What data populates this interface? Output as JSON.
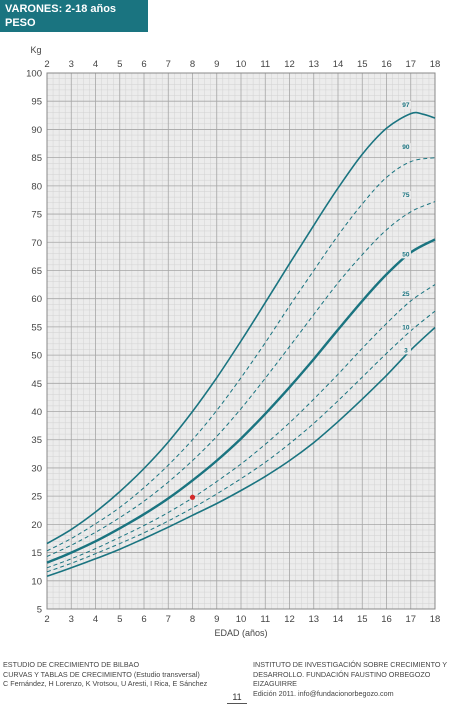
{
  "header": {
    "title_line1": "VARONES: 2-18 años",
    "title_line2": "PESO"
  },
  "chart_data": {
    "type": "line",
    "title": "VARONES: 2-18 años",
    "subtitle": "PESO",
    "xlabel": "EDAD (años)",
    "ylabel": "Kg",
    "xlim": [
      2,
      18
    ],
    "ylim": [
      5,
      100
    ],
    "xticks": [
      2,
      3,
      4,
      5,
      6,
      7,
      8,
      9,
      10,
      11,
      12,
      13,
      14,
      15,
      16,
      17,
      18
    ],
    "yticks": [
      5,
      10,
      15,
      20,
      25,
      30,
      35,
      40,
      45,
      50,
      55,
      60,
      65,
      70,
      75,
      80,
      85,
      90,
      95,
      100
    ],
    "grid": true,
    "series": [
      {
        "name": "97",
        "style": "solid",
        "x": [
          2,
          3,
          4,
          5,
          6,
          7,
          8,
          9,
          10,
          11,
          12,
          13,
          14,
          15,
          16,
          17,
          17.5,
          18
        ],
        "values": [
          16.6,
          19.1,
          22.2,
          25.8,
          29.9,
          34.6,
          40.0,
          46.0,
          52.5,
          59.3,
          66.2,
          73.0,
          79.6,
          85.6,
          90.2,
          92.8,
          92.7,
          92.0
        ]
      },
      {
        "name": "90",
        "style": "dashed",
        "x": [
          2,
          3,
          4,
          5,
          6,
          7,
          8,
          9,
          10,
          11,
          12,
          13,
          14,
          15,
          16,
          17,
          18
        ],
        "values": [
          15.3,
          17.5,
          20.1,
          23.0,
          26.5,
          30.5,
          35.0,
          40.2,
          46.0,
          52.2,
          58.7,
          65.0,
          71.2,
          76.8,
          81.5,
          84.3,
          85.0
        ]
      },
      {
        "name": "75",
        "style": "dashed",
        "x": [
          2,
          3,
          4,
          5,
          6,
          7,
          8,
          9,
          10,
          11,
          12,
          13,
          14,
          15,
          16,
          17,
          18
        ],
        "values": [
          14.3,
          16.3,
          18.6,
          21.2,
          24.1,
          27.5,
          31.3,
          35.6,
          40.5,
          45.9,
          51.5,
          57.2,
          62.8,
          67.8,
          72.2,
          75.4,
          77.2
        ]
      },
      {
        "name": "50",
        "style": "solid",
        "x": [
          2,
          3,
          4,
          5,
          6,
          7,
          8,
          9,
          10,
          11,
          12,
          13,
          14,
          15,
          16,
          17,
          18
        ],
        "values": [
          13.2,
          15.0,
          17.0,
          19.3,
          21.8,
          24.6,
          27.8,
          31.3,
          35.2,
          39.6,
          44.3,
          49.3,
          54.5,
          59.6,
          64.3,
          68.2,
          70.5
        ]
      },
      {
        "name": "25",
        "style": "dashed",
        "x": [
          2,
          3,
          4,
          5,
          6,
          7,
          8,
          9,
          10,
          11,
          12,
          13,
          14,
          15,
          16,
          17,
          18
        ],
        "values": [
          12.3,
          13.9,
          15.7,
          17.7,
          19.8,
          22.1,
          24.7,
          27.6,
          30.7,
          34.2,
          38.0,
          42.2,
          46.6,
          51.2,
          55.6,
          59.6,
          62.5
        ]
      },
      {
        "name": "10",
        "style": "dashed",
        "x": [
          2,
          3,
          4,
          5,
          6,
          7,
          8,
          9,
          10,
          11,
          12,
          13,
          14,
          15,
          16,
          17,
          18
        ],
        "values": [
          11.6,
          13.1,
          14.8,
          16.6,
          18.5,
          20.6,
          22.9,
          25.4,
          28.1,
          31.0,
          34.3,
          37.9,
          41.9,
          46.1,
          50.3,
          54.3,
          57.8
        ]
      },
      {
        "name": "3",
        "style": "solid",
        "x": [
          2,
          3,
          4,
          5,
          6,
          7,
          8,
          9,
          10,
          11,
          12,
          13,
          14,
          15,
          16,
          17,
          18
        ],
        "values": [
          10.8,
          12.3,
          13.9,
          15.6,
          17.5,
          19.5,
          21.6,
          23.7,
          26.0,
          28.5,
          31.3,
          34.5,
          38.2,
          42.2,
          46.4,
          50.9,
          54.9
        ]
      }
    ],
    "points": [
      {
        "x": 8.0,
        "y": 24.8,
        "color": "#d42a2a"
      }
    ],
    "colors": {
      "curve": "#1a7480",
      "grid_major": "#a6a6a6",
      "grid_minor": "#d2d2d2",
      "plot_bg": "#ececec",
      "marker": "#d42a2a"
    }
  },
  "footer": {
    "left": [
      "ESTUDIO DE CRECIMIENTO DE BILBAO",
      "CURVAS Y TABLAS DE CRECIMIENTO (Estudio transversal)",
      "C Fernández, H Lorenzo, K Vrotsou, U Aresti, I Rica, E Sánchez"
    ],
    "right": [
      "INSTITUTO DE INVESTIGACIÓN SOBRE CRECIMIENTO Y",
      "DESARROLLO. FUNDACIÓN FAUSTINO ORBEGOZO EIZAGUIRRE",
      "Edición 2011. info@fundacionorbegozo.com"
    ],
    "page_number": "11"
  }
}
